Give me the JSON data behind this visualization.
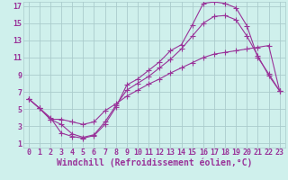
{
  "background_color": "#cff0ec",
  "line_color": "#993399",
  "grid_color": "#aacccc",
  "xlabel": "Windchill (Refroidissement éolien,°C)",
  "xlabel_fontsize": 7.0,
  "tick_fontsize": 6.0,
  "xlim": [
    -0.5,
    23.5
  ],
  "ylim": [
    0.5,
    17.5
  ],
  "xticks": [
    0,
    1,
    2,
    3,
    4,
    5,
    6,
    7,
    8,
    9,
    10,
    11,
    12,
    13,
    14,
    15,
    16,
    17,
    18,
    19,
    20,
    21,
    22,
    23
  ],
  "yticks": [
    1,
    3,
    5,
    7,
    9,
    11,
    13,
    15,
    17
  ],
  "line1_x": [
    0,
    1,
    2,
    3,
    4,
    5,
    6,
    7,
    8,
    9,
    10,
    11,
    12,
    13,
    14,
    15,
    16,
    17,
    18,
    19,
    20,
    21,
    22,
    23
  ],
  "line1_y": [
    6.2,
    5.1,
    4.0,
    2.2,
    1.8,
    1.6,
    1.9,
    3.2,
    5.2,
    7.8,
    8.5,
    9.5,
    10.5,
    11.8,
    12.5,
    14.8,
    17.3,
    17.5,
    17.3,
    16.8,
    14.7,
    11.0,
    9.1,
    7.1
  ],
  "line2_x": [
    0,
    1,
    2,
    3,
    4,
    5,
    6,
    7,
    8,
    9,
    10,
    11,
    12,
    13,
    14,
    15,
    16,
    17,
    18,
    19,
    20,
    21,
    22,
    23
  ],
  "line2_y": [
    6.2,
    5.1,
    3.8,
    3.2,
    2.1,
    1.7,
    2.0,
    3.5,
    5.4,
    7.2,
    8.0,
    8.8,
    9.8,
    10.8,
    12.0,
    13.5,
    15.0,
    15.8,
    15.9,
    15.4,
    13.5,
    11.2,
    8.9,
    7.1
  ],
  "line3_x": [
    0,
    1,
    2,
    3,
    4,
    5,
    6,
    7,
    8,
    9,
    10,
    11,
    12,
    13,
    14,
    15,
    16,
    17,
    18,
    19,
    20,
    21,
    22,
    23
  ],
  "line3_y": [
    6.2,
    5.1,
    3.8,
    3.8,
    3.5,
    3.2,
    3.5,
    4.8,
    5.6,
    6.5,
    7.2,
    7.9,
    8.5,
    9.2,
    9.8,
    10.4,
    11.0,
    11.4,
    11.6,
    11.8,
    12.0,
    12.2,
    12.4,
    7.1
  ]
}
